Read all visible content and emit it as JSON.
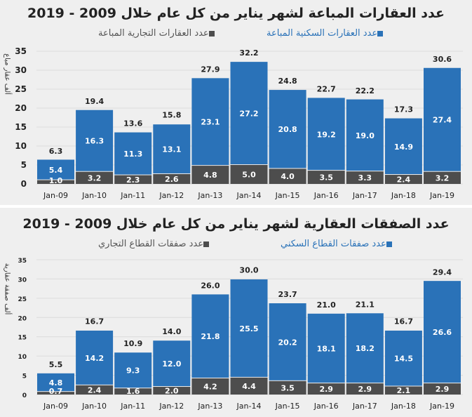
{
  "colors": {
    "residential": "#2a72b8",
    "commercial": "#4d4d4d"
  },
  "chart_data": [
    {
      "type": "bar",
      "stacked": true,
      "title": "عدد العقارات المباعة لشهر يناير من كل عام خلال 2009 - 2019",
      "ylabel": "ألف عقار مباع",
      "ylim": [
        0,
        35
      ],
      "yticks": [
        0,
        5,
        10,
        15,
        20,
        25,
        30,
        35
      ],
      "legend_position": "top",
      "categories": [
        "Jan-09",
        "Jan-10",
        "Jan-11",
        "Jan-12",
        "Jan-13",
        "Jan-14",
        "Jan-15",
        "Jan-16",
        "Jan-17",
        "Jan-18",
        "Jan-19"
      ],
      "series": [
        {
          "name": "عدد العقارات التجارية المباعة",
          "key": "commercial",
          "values": [
            1.0,
            3.2,
            2.3,
            2.6,
            4.8,
            5.0,
            4.0,
            3.5,
            3.3,
            2.4,
            3.2
          ]
        },
        {
          "name": "عدد العقارات السكنية المباعة",
          "key": "residential",
          "values": [
            5.4,
            16.3,
            11.3,
            13.1,
            23.1,
            27.2,
            20.8,
            19.2,
            19.0,
            14.9,
            27.4
          ]
        }
      ],
      "totals": [
        6.3,
        19.4,
        13.6,
        15.8,
        27.9,
        32.2,
        24.8,
        22.7,
        22.2,
        17.3,
        30.6
      ]
    },
    {
      "type": "bar",
      "stacked": true,
      "title": "عدد الصفقات العقارية لشهر يناير من كل عام خلال 2009 - 2019",
      "ylabel": "ألف صفقة عقارية",
      "ylim": [
        0,
        35
      ],
      "yticks": [
        0,
        5,
        10,
        15,
        20,
        25,
        30,
        35
      ],
      "legend_position": "top",
      "categories": [
        "Jan-09",
        "Jan-10",
        "Jan-11",
        "Jan-12",
        "Jan-13",
        "Jan-14",
        "Jan-15",
        "Jan-16",
        "Jan-17",
        "Jan-18",
        "Jan-19"
      ],
      "series": [
        {
          "name": "عدد صفقات القطاع التجاري",
          "key": "commercial",
          "values": [
            0.7,
            2.4,
            1.6,
            2.0,
            4.2,
            4.4,
            3.5,
            2.9,
            2.9,
            2.1,
            2.9
          ]
        },
        {
          "name": "عدد صفقات القطاع السكني",
          "key": "residential",
          "values": [
            4.8,
            14.2,
            9.3,
            12.0,
            21.8,
            25.5,
            20.2,
            18.1,
            18.2,
            14.5,
            26.6
          ]
        }
      ],
      "totals": [
        5.5,
        16.7,
        10.9,
        14.0,
        26.0,
        30.0,
        23.7,
        21.0,
        21.1,
        16.7,
        29.4
      ]
    }
  ]
}
